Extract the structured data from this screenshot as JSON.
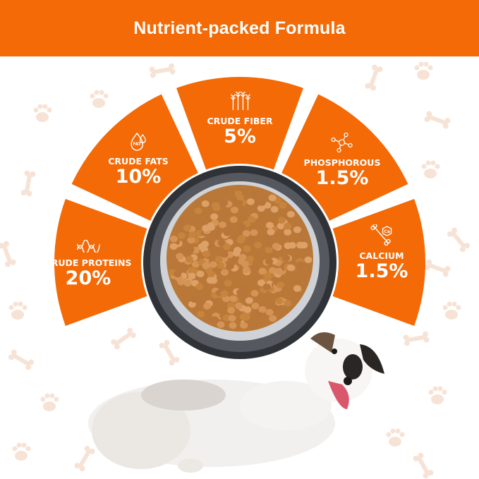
{
  "header": {
    "title": "Nutrient-packed Formula"
  },
  "colors": {
    "brand_orange": "#F36A07",
    "pattern": "#F7E3D6",
    "bowl_rim": "#3a3d42",
    "kibble": "#C98A4B"
  },
  "nutrients": [
    {
      "label": "CRUDE PROTEINS",
      "value": "20%",
      "icon": "dna-helix-icon"
    },
    {
      "label": "CRUDE FATS",
      "value": "10%",
      "icon": "fat-drop-icon",
      "icon_text": "FAT"
    },
    {
      "label": "CRUDE FIBER",
      "value": "5%",
      "icon": "wheat-icon"
    },
    {
      "label": "PHOSPHOROUS",
      "value": "1.5%",
      "icon": "molecule-icon"
    },
    {
      "label": "CALCIUM",
      "value": "1.5%",
      "icon": "bone-calcium-icon",
      "icon_text": "Ca"
    }
  ]
}
